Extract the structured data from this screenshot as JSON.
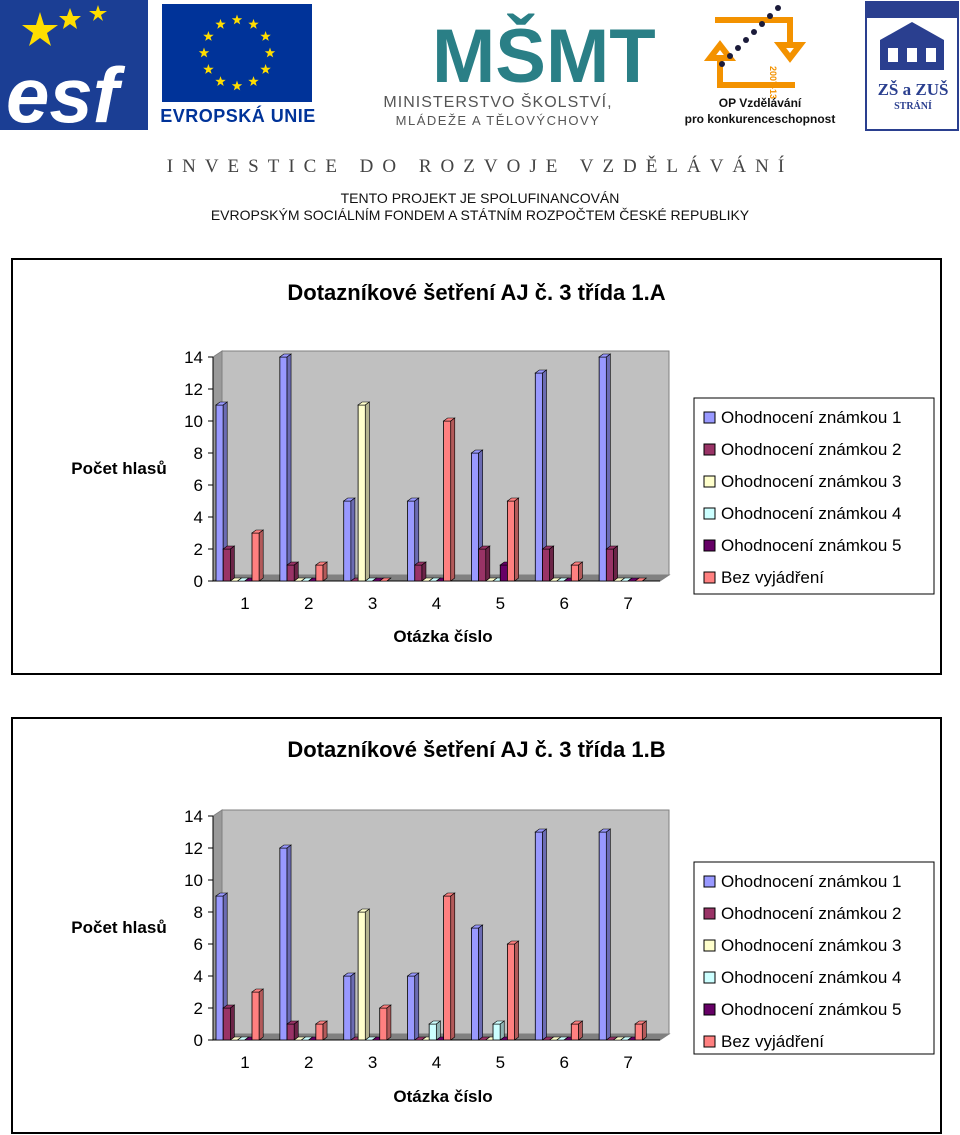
{
  "header": {
    "esf_logo_text": "esf",
    "eu_label": "EVROPSKÁ UNIE",
    "msmt_logo_text": "MŠMT",
    "msmt_line1": "MINISTERSTVO ŠKOLSTVÍ,",
    "msmt_line2": "MLÁDEŽE A TĚLOVÝCHOVY",
    "op_line1": "OP Vzdělávání",
    "op_line2": "pro konkurenceschopnost",
    "op_years": "2007-13",
    "school_line1": "ZŠ a ZUŠ",
    "school_line2": "STRÁNÍ",
    "investice": "INVESTICE DO ROZVOJE VZDĚLÁVÁNÍ",
    "cofund_line1": "TENTO PROJEKT JE SPOLUFINANCOVÁN",
    "cofund_line2": "EVROPSKÝM SOCIÁLNÍM FONDEM A STÁTNÍM ROZPOČTEM ČESKÉ REPUBLIKY"
  },
  "colors": {
    "series": [
      "#9999FF",
      "#993366",
      "#FFFFCC",
      "#CCFFFF",
      "#660066",
      "#FF8080"
    ],
    "plot_wall": "#C0C0C0",
    "eu_blue": "#003399",
    "eu_star": "#FFDD00",
    "esf_blue": "#1B3E94",
    "msmt_teal": "#2A7F86",
    "op_orange": "#F39200"
  },
  "chart_data": [
    {
      "type": "bar",
      "title": "Dotazníkové šetření AJ č. 3  třída 1.A",
      "xlabel": "Otázka číslo",
      "ylabel": "Počet hlasů",
      "ylim": [
        0,
        14
      ],
      "yticks": [
        "0",
        "2",
        "4",
        "6",
        "8",
        "10",
        "12",
        "14"
      ],
      "categories": [
        "1",
        "2",
        "3",
        "4",
        "5",
        "6",
        "7"
      ],
      "legend_position": "right",
      "grid": false,
      "series": [
        {
          "name": "Ohodnocení známkou 1",
          "values": [
            11,
            14,
            5,
            5,
            8,
            13,
            14
          ]
        },
        {
          "name": "Ohodnocení známkou 2",
          "values": [
            2,
            1,
            0,
            1,
            2,
            2,
            2
          ]
        },
        {
          "name": "Ohodnocení známkou 3",
          "values": [
            0,
            0,
            11,
            0,
            0,
            0,
            0
          ]
        },
        {
          "name": "Ohodnocení známkou 4",
          "values": [
            0,
            0,
            0,
            0,
            0,
            0,
            0
          ]
        },
        {
          "name": "Ohodnocení známkou 5",
          "values": [
            0,
            0,
            0,
            0,
            1,
            0,
            0
          ]
        },
        {
          "name": "Bez vyjádření",
          "values": [
            3,
            1,
            0,
            10,
            5,
            1,
            0
          ]
        }
      ]
    },
    {
      "type": "bar",
      "title": "Dotazníkové šetření AJ č. 3  třída 1.B",
      "xlabel": "Otázka číslo",
      "ylabel": "Počet hlasů",
      "ylim": [
        0,
        14
      ],
      "yticks": [
        "0",
        "2",
        "4",
        "6",
        "8",
        "10",
        "12",
        "14"
      ],
      "categories": [
        "1",
        "2",
        "3",
        "4",
        "5",
        "6",
        "7"
      ],
      "legend_position": "right",
      "grid": false,
      "series": [
        {
          "name": "Ohodnocení známkou 1",
          "values": [
            9,
            12,
            4,
            4,
            7,
            13,
            13
          ]
        },
        {
          "name": "Ohodnocení známkou 2",
          "values": [
            2,
            1,
            0,
            0,
            0,
            0,
            0
          ]
        },
        {
          "name": "Ohodnocení známkou 3",
          "values": [
            0,
            0,
            8,
            0,
            0,
            0,
            0
          ]
        },
        {
          "name": "Ohodnocení známkou 4",
          "values": [
            0,
            0,
            0,
            1,
            1,
            0,
            0
          ]
        },
        {
          "name": "Ohodnocení známkou 5",
          "values": [
            0,
            0,
            0,
            0,
            0,
            0,
            0
          ]
        },
        {
          "name": "Bez vyjádření",
          "values": [
            3,
            1,
            2,
            9,
            6,
            1,
            1
          ]
        }
      ]
    }
  ]
}
